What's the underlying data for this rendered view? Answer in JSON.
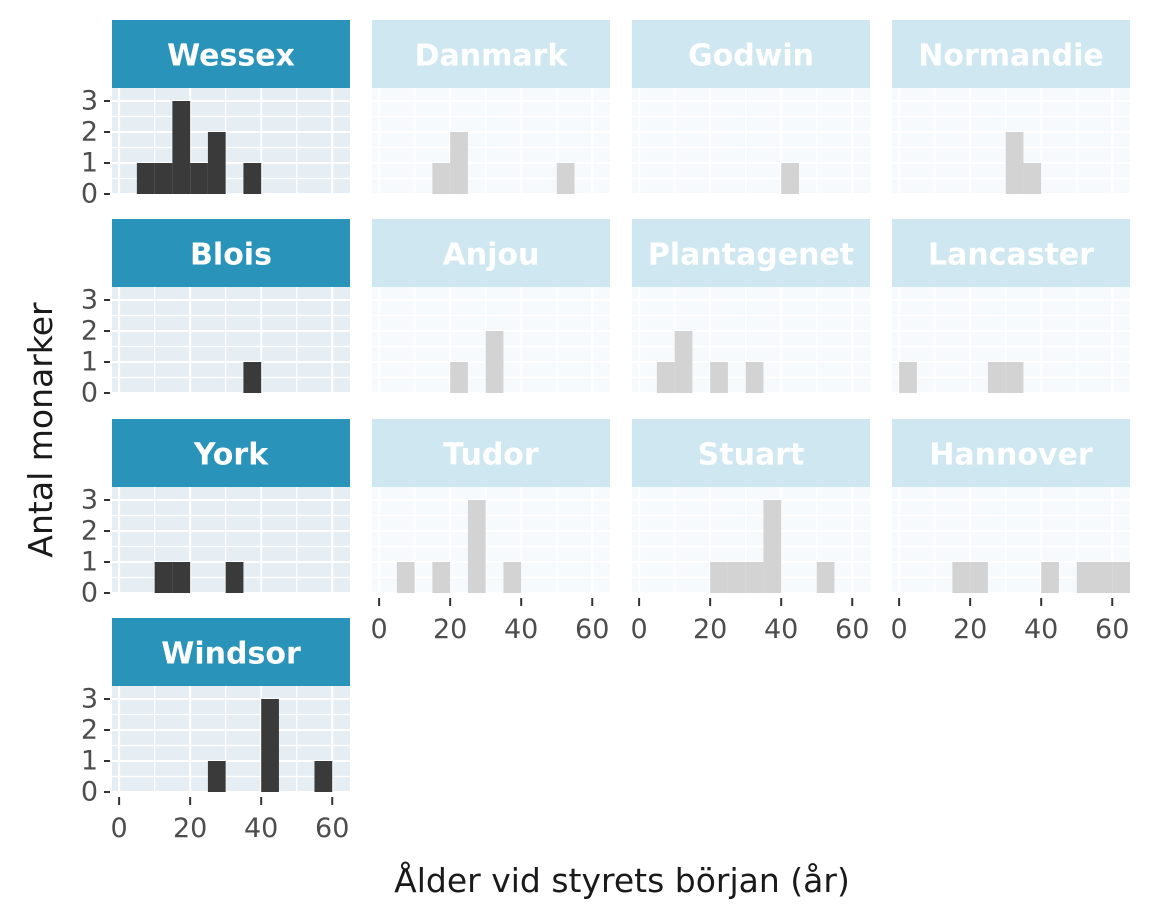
{
  "chart_data": {
    "type": "bar",
    "subtype": "faceted-histogram",
    "xlabel": "Ålder vid styrets början (år)",
    "ylabel": "Antal monarker",
    "xlim": [
      -2,
      65
    ],
    "ylim": [
      0,
      3
    ],
    "x_ticks": [
      0,
      20,
      40,
      60
    ],
    "y_ticks": [
      0,
      1,
      2,
      3
    ],
    "bin_width": 5,
    "grid": true,
    "colors": {
      "highlight_bar": "#3a3a3a",
      "highlight_strip": "#2a93ba",
      "highlight_panel": "#e6eef4",
      "faded_bar": "#d3d3d3",
      "faded_strip": "#cfe7f0",
      "faded_panel": "#f7fafc",
      "strip_text": "#ffffff"
    },
    "facets": [
      {
        "name": "Wessex",
        "highlighted": true,
        "bins": [
          {
            "x": 7.5,
            "count": 1
          },
          {
            "x": 12.5,
            "count": 1
          },
          {
            "x": 17.5,
            "count": 3
          },
          {
            "x": 22.5,
            "count": 1
          },
          {
            "x": 27.5,
            "count": 2
          },
          {
            "x": 37.5,
            "count": 1
          }
        ]
      },
      {
        "name": "Danmark",
        "highlighted": false,
        "bins": [
          {
            "x": 17.5,
            "count": 1
          },
          {
            "x": 22.5,
            "count": 2
          },
          {
            "x": 52.5,
            "count": 1
          }
        ]
      },
      {
        "name": "Godwin",
        "highlighted": false,
        "bins": [
          {
            "x": 42.5,
            "count": 1
          }
        ]
      },
      {
        "name": "Normandie",
        "highlighted": false,
        "bins": [
          {
            "x": 32.5,
            "count": 2
          },
          {
            "x": 37.5,
            "count": 1
          }
        ]
      },
      {
        "name": "Blois",
        "highlighted": true,
        "bins": [
          {
            "x": 37.5,
            "count": 1
          }
        ]
      },
      {
        "name": "Anjou",
        "highlighted": false,
        "bins": [
          {
            "x": 22.5,
            "count": 1
          },
          {
            "x": 32.5,
            "count": 2
          }
        ]
      },
      {
        "name": "Plantagenet",
        "highlighted": false,
        "bins": [
          {
            "x": 7.5,
            "count": 1
          },
          {
            "x": 12.5,
            "count": 2
          },
          {
            "x": 22.5,
            "count": 1
          },
          {
            "x": 32.5,
            "count": 1
          }
        ]
      },
      {
        "name": "Lancaster",
        "highlighted": false,
        "bins": [
          {
            "x": 2.5,
            "count": 1
          },
          {
            "x": 27.5,
            "count": 1
          },
          {
            "x": 32.5,
            "count": 1
          }
        ]
      },
      {
        "name": "York",
        "highlighted": true,
        "bins": [
          {
            "x": 12.5,
            "count": 1
          },
          {
            "x": 17.5,
            "count": 1
          },
          {
            "x": 32.5,
            "count": 1
          }
        ]
      },
      {
        "name": "Tudor",
        "highlighted": false,
        "bins": [
          {
            "x": 7.5,
            "count": 1
          },
          {
            "x": 17.5,
            "count": 1
          },
          {
            "x": 27.5,
            "count": 3
          },
          {
            "x": 37.5,
            "count": 1
          }
        ]
      },
      {
        "name": "Stuart",
        "highlighted": false,
        "bins": [
          {
            "x": 22.5,
            "count": 1
          },
          {
            "x": 27.5,
            "count": 1
          },
          {
            "x": 32.5,
            "count": 1
          },
          {
            "x": 37.5,
            "count": 3
          },
          {
            "x": 52.5,
            "count": 1
          }
        ]
      },
      {
        "name": "Hannover",
        "highlighted": false,
        "bins": [
          {
            "x": 17.5,
            "count": 1
          },
          {
            "x": 22.5,
            "count": 1
          },
          {
            "x": 42.5,
            "count": 1
          },
          {
            "x": 52.5,
            "count": 1
          },
          {
            "x": 57.5,
            "count": 1
          },
          {
            "x": 62.5,
            "count": 1
          }
        ]
      },
      {
        "name": "Windsor",
        "highlighted": true,
        "bins": [
          {
            "x": 27.5,
            "count": 1
          },
          {
            "x": 42.5,
            "count": 3
          },
          {
            "x": 57.5,
            "count": 1
          }
        ]
      }
    ]
  }
}
